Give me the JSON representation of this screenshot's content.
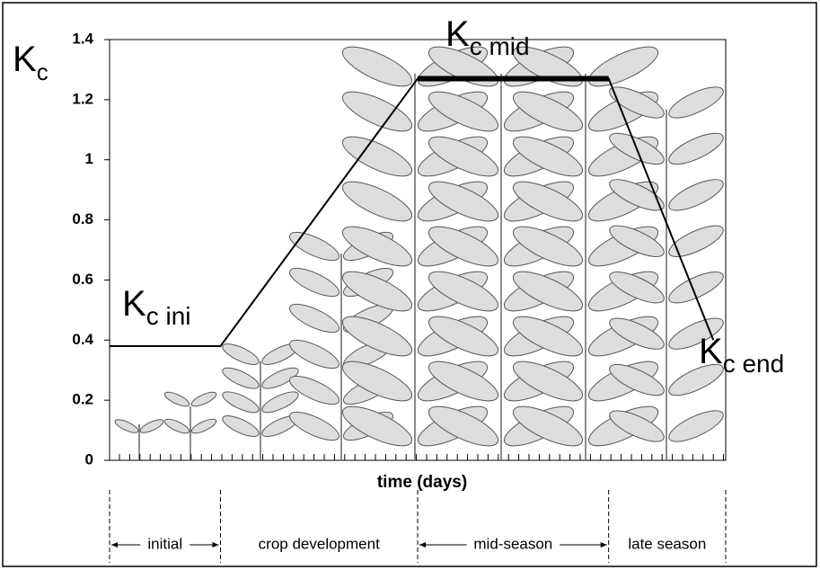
{
  "chart_data": {
    "type": "line",
    "y_label": {
      "main": "K",
      "sub": "c"
    },
    "x_label": "time (days)",
    "xlim": [
      0,
      100
    ],
    "ylim": [
      0,
      1.4
    ],
    "yticks": [
      0,
      0.2,
      0.4,
      0.6,
      0.8,
      1,
      1.2,
      1.4
    ],
    "x": [
      0,
      18,
      50,
      81,
      98
    ],
    "values": [
      0.38,
      0.38,
      1.27,
      1.27,
      0.4
    ],
    "color": "#000000",
    "annotations": [
      {
        "main": "K",
        "sub": "c ini"
      },
      {
        "main": "K",
        "sub": "c mid"
      },
      {
        "main": "K",
        "sub": "c end"
      }
    ],
    "stages": [
      {
        "label": "initial",
        "start": 0,
        "end": 18
      },
      {
        "label": "crop development",
        "start": 18,
        "end": 50
      },
      {
        "label": "mid-season",
        "start": 50,
        "end": 81
      },
      {
        "label": "late season",
        "start": 81,
        "end": 100
      }
    ]
  }
}
